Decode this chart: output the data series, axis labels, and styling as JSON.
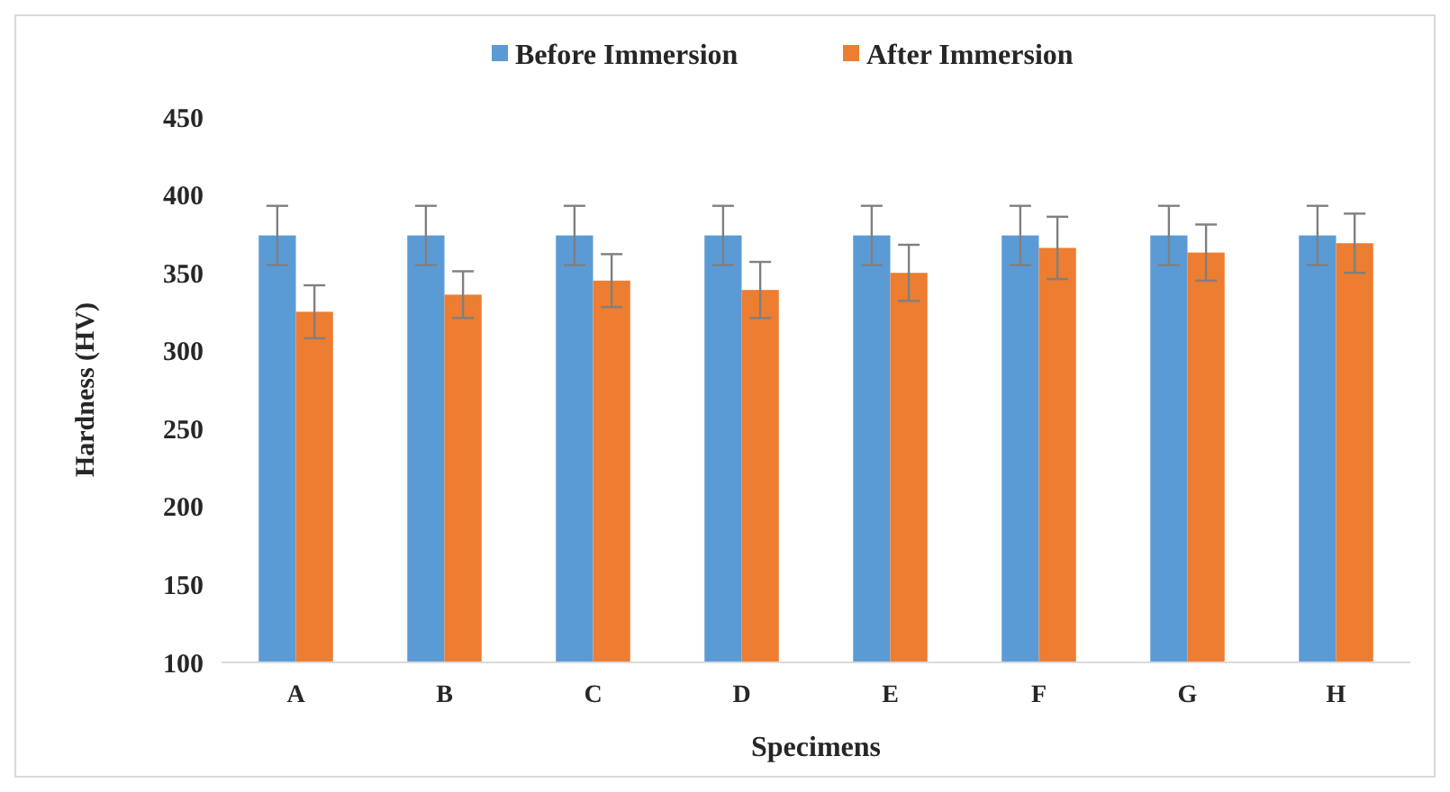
{
  "chart_data": {
    "type": "bar",
    "xlabel": "Specimens",
    "ylabel": "Hardness (HV)",
    "categories": [
      "A",
      "B",
      "C",
      "D",
      "E",
      "F",
      "G",
      "H"
    ],
    "series": [
      {
        "name": "Before Immersion",
        "color": "#5b9bd5",
        "values": [
          374,
          374,
          374,
          374,
          374,
          374,
          374,
          374
        ],
        "errors": [
          19,
          19,
          19,
          19,
          19,
          19,
          19,
          19
        ]
      },
      {
        "name": "After Immersion",
        "color": "#ed7d31",
        "values": [
          325,
          336,
          345,
          339,
          350,
          366,
          363,
          369
        ],
        "errors": [
          17,
          15,
          17,
          18,
          18,
          20,
          18,
          19
        ]
      }
    ],
    "ylim": [
      100,
      450
    ],
    "yticks": [
      100,
      150,
      200,
      250,
      300,
      350,
      400,
      450
    ],
    "grid": false,
    "legend": "top"
  }
}
